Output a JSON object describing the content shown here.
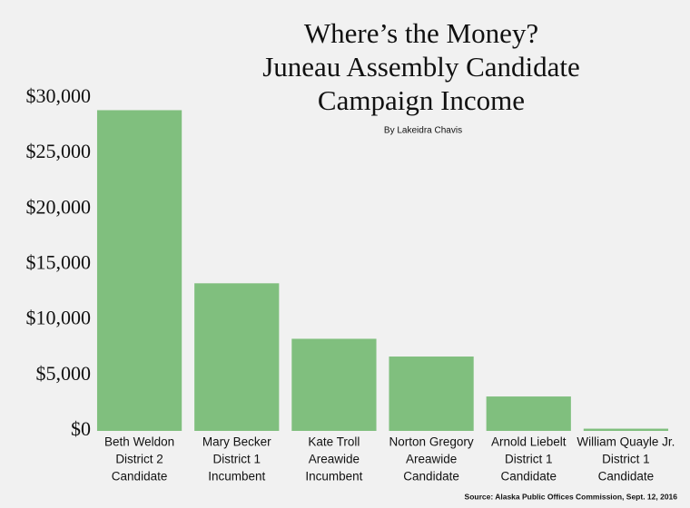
{
  "chart_data": {
    "type": "bar",
    "title": [
      "Where’s the Money?",
      "Juneau Assembly Candidate",
      "Campaign Income"
    ],
    "subtitle": "By Lakeidra Chavis",
    "source": "Source: Alaska Public Offices Commission, Sept. 12, 2016",
    "categories": [
      [
        "Beth Weldon",
        "District 2",
        "Candidate"
      ],
      [
        "Mary Becker",
        "District 1",
        "Incumbent"
      ],
      [
        "Kate Troll",
        "Areawide",
        "Incumbent"
      ],
      [
        "Norton Gregory",
        "Areawide",
        "Candidate"
      ],
      [
        "Arnold Liebelt",
        "District 1",
        "Candidate"
      ],
      [
        "William Quayle Jr.",
        "District 1",
        "Candidate"
      ]
    ],
    "values": [
      28900,
      13300,
      8300,
      6700,
      3100,
      200
    ],
    "color": "#80bf7e",
    "ylim": [
      0,
      30000
    ],
    "yticks": [
      {
        "value": 0,
        "label": "$0"
      },
      {
        "value": 5000,
        "label": "$5,000"
      },
      {
        "value": 10000,
        "label": "$10,000"
      },
      {
        "value": 15000,
        "label": "$15,000"
      },
      {
        "value": 20000,
        "label": "$20,000"
      },
      {
        "value": 25000,
        "label": "$25,000"
      },
      {
        "value": 30000,
        "label": "$30,000"
      }
    ],
    "grid": false
  }
}
